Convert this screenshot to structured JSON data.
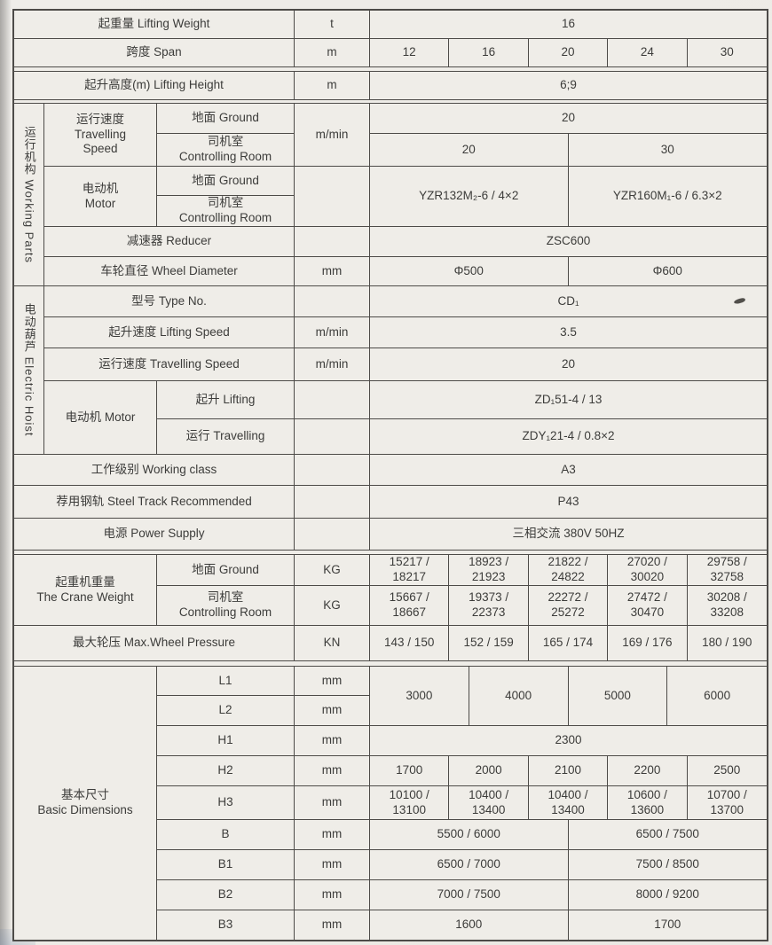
{
  "table": {
    "cells": [
      {
        "name": "lifting-weight-label",
        "text": "起重量  Lifting Weight",
        "c": 1,
        "cs": 3,
        "r": 1
      },
      {
        "name": "lifting-weight-unit",
        "text": "t",
        "c": 4,
        "r": 1
      },
      {
        "name": "lifting-weight-value",
        "text": "16",
        "c": 5,
        "cs": 20,
        "r": 1
      },
      {
        "name": "span-label",
        "text": "跨度  Span",
        "c": 1,
        "cs": 3,
        "r": 2
      },
      {
        "name": "span-unit",
        "text": "m",
        "c": 4,
        "r": 2
      },
      {
        "name": "span-value-1",
        "text": "12",
        "c": 5,
        "cs": 4,
        "r": 2
      },
      {
        "name": "span-value-2",
        "text": "16",
        "c": 9,
        "cs": 4,
        "r": 2
      },
      {
        "name": "span-value-3",
        "text": "20",
        "c": 13,
        "cs": 4,
        "r": 2
      },
      {
        "name": "span-value-4",
        "text": "24",
        "c": 17,
        "cs": 4,
        "r": 2
      },
      {
        "name": "span-value-5",
        "text": "30",
        "c": 21,
        "cs": 4,
        "r": 2
      },
      {
        "name": "scan-double-line-gap",
        "text": "",
        "c": 1,
        "cs": 24,
        "r": 3,
        "variant": "gap"
      },
      {
        "name": "lifting-height-label",
        "text": "起升高度(m)  Lifting Height",
        "c": 1,
        "cs": 3,
        "r": 4
      },
      {
        "name": "lifting-height-unit",
        "text": "m",
        "c": 4,
        "r": 4
      },
      {
        "name": "lifting-height-value",
        "text": "6;9",
        "c": 5,
        "cs": 20,
        "r": 4
      },
      {
        "name": "scan-double-line-gap",
        "text": "",
        "c": 1,
        "cs": 24,
        "r": 5,
        "variant": "gap"
      },
      {
        "name": "working-parts-section-label",
        "text": "运行机构  Working Parts",
        "c": 1,
        "r": 6,
        "rs": 6,
        "variant": "vert"
      },
      {
        "name": "travelling-speed-label",
        "text": "运行速度\nTravelling\nSpeed",
        "c": 2,
        "r": 6,
        "rs": 2
      },
      {
        "name": "travelling-speed-ground-label",
        "text": "地面 Ground",
        "c": 3,
        "r": 6
      },
      {
        "name": "travelling-speed-unit",
        "text": "m/min",
        "c": 4,
        "r": 6,
        "rs": 2
      },
      {
        "name": "travelling-speed-ground-value",
        "text": "20",
        "c": 5,
        "cs": 20,
        "r": 6
      },
      {
        "name": "travelling-speed-room-label",
        "text": "司机室\nControlling Room",
        "c": 3,
        "r": 7
      },
      {
        "name": "travelling-speed-room-value-1",
        "text": "20",
        "c": 5,
        "cs": 10,
        "r": 7
      },
      {
        "name": "travelling-speed-room-value-2",
        "text": "30",
        "c": 15,
        "cs": 10,
        "r": 7
      },
      {
        "name": "motor-label",
        "text": "电动机\nMotor",
        "c": 2,
        "r": 8,
        "rs": 2
      },
      {
        "name": "motor-ground-label",
        "text": "地面 Ground",
        "c": 3,
        "r": 8
      },
      {
        "name": "motor-unit",
        "text": "",
        "c": 4,
        "r": 8,
        "rs": 2
      },
      {
        "name": "motor-value-1",
        "text": "YZR132M₂-6 / 4×2",
        "c": 5,
        "cs": 10,
        "r": 8,
        "rs": 2
      },
      {
        "name": "motor-value-2",
        "text": "YZR160M₁-6 / 6.3×2",
        "c": 15,
        "cs": 10,
        "r": 8,
        "rs": 2
      },
      {
        "name": "motor-room-label",
        "text": "司机室\nControlling Room",
        "c": 3,
        "r": 9
      },
      {
        "name": "reducer-label",
        "text": "减速器 Reducer",
        "c": 2,
        "cs": 2,
        "r": 10
      },
      {
        "name": "reducer-unit",
        "text": "",
        "c": 4,
        "r": 10
      },
      {
        "name": "reducer-value",
        "text": "ZSC600",
        "c": 5,
        "cs": 20,
        "r": 10
      },
      {
        "name": "wheel-diameter-label",
        "text": "车轮直径 Wheel Diameter",
        "c": 2,
        "cs": 2,
        "r": 11
      },
      {
        "name": "wheel-diameter-unit",
        "text": "mm",
        "c": 4,
        "r": 11
      },
      {
        "name": "wheel-diameter-value-1",
        "text": "Φ500",
        "c": 5,
        "cs": 10,
        "r": 11
      },
      {
        "name": "wheel-diameter-value-2",
        "text": "Φ600",
        "c": 15,
        "cs": 10,
        "r": 11
      },
      {
        "name": "electric-hoist-section-label",
        "text": "电动葫芦 Electric Hoist",
        "c": 1,
        "r": 12,
        "rs": 5,
        "variant": "vert"
      },
      {
        "name": "type-no-label",
        "text": "型号 Type No.",
        "c": 2,
        "cs": 2,
        "r": 12
      },
      {
        "name": "type-no-unit",
        "text": "",
        "c": 4,
        "r": 12
      },
      {
        "name": "type-no-value",
        "text": "CD₁",
        "c": 5,
        "cs": 20,
        "r": 12
      },
      {
        "name": "lifting-speed-label",
        "text": "起升速度 Lifting Speed",
        "c": 2,
        "cs": 2,
        "r": 13
      },
      {
        "name": "lifting-speed-unit",
        "text": "m/min",
        "c": 4,
        "r": 13
      },
      {
        "name": "lifting-speed-value",
        "text": "3.5",
        "c": 5,
        "cs": 20,
        "r": 13
      },
      {
        "name": "hoist-travelling-speed-label",
        "text": "运行速度 Travelling Speed",
        "c": 2,
        "cs": 2,
        "r": 14
      },
      {
        "name": "hoist-travelling-speed-unit",
        "text": "m/min",
        "c": 4,
        "r": 14
      },
      {
        "name": "hoist-travelling-speed-value",
        "text": "20",
        "c": 5,
        "cs": 20,
        "r": 14
      },
      {
        "name": "hoist-motor-label",
        "text": "电动机 Motor",
        "c": 2,
        "r": 15,
        "rs": 2
      },
      {
        "name": "hoist-motor-lifting-label",
        "text": "起升 Lifting",
        "c": 3,
        "r": 15
      },
      {
        "name": "hoist-motor-lifting-unit",
        "text": "",
        "c": 4,
        "r": 15
      },
      {
        "name": "hoist-motor-lifting-value",
        "text": "ZD₁51-4 / 13",
        "c": 5,
        "cs": 20,
        "r": 15
      },
      {
        "name": "hoist-motor-travelling-label",
        "text": "运行 Travelling",
        "c": 3,
        "r": 16
      },
      {
        "name": "hoist-motor-travelling-unit",
        "text": "",
        "c": 4,
        "r": 16
      },
      {
        "name": "hoist-motor-travelling-value",
        "text": "ZDY₁21-4 / 0.8×2",
        "c": 5,
        "cs": 20,
        "r": 16
      },
      {
        "name": "working-class-label",
        "text": "工作级别 Working class",
        "c": 1,
        "cs": 3,
        "r": 17
      },
      {
        "name": "working-class-unit",
        "text": "",
        "c": 4,
        "r": 17
      },
      {
        "name": "working-class-value",
        "text": "A3",
        "c": 5,
        "cs": 20,
        "r": 17
      },
      {
        "name": "steel-track-label",
        "text": "荐用钢轨 Steel Track Recommended",
        "c": 1,
        "cs": 3,
        "r": 18
      },
      {
        "name": "steel-track-unit",
        "text": "",
        "c": 4,
        "r": 18
      },
      {
        "name": "steel-track-value",
        "text": "P43",
        "c": 5,
        "cs": 20,
        "r": 18
      },
      {
        "name": "power-supply-label",
        "text": "电源 Power Supply",
        "c": 1,
        "cs": 3,
        "r": 19
      },
      {
        "name": "power-supply-unit",
        "text": "",
        "c": 4,
        "r": 19
      },
      {
        "name": "power-supply-value",
        "text": "三相交流 380V  50HZ",
        "c": 5,
        "cs": 20,
        "r": 19
      },
      {
        "name": "scan-double-line-gap",
        "text": "",
        "c": 1,
        "cs": 24,
        "r": 20,
        "variant": "gap"
      },
      {
        "name": "crane-weight-label",
        "text": "起重机重量\nThe Crane Weight",
        "c": 1,
        "cs": 2,
        "r": 21,
        "rs": 2
      },
      {
        "name": "crane-weight-ground-label",
        "text": "地面 Ground",
        "c": 3,
        "r": 21
      },
      {
        "name": "crane-weight-ground-unit",
        "text": "KG",
        "c": 4,
        "r": 21
      },
      {
        "name": "crane-weight-ground-value-1",
        "text": "15217 /\n18217",
        "c": 5,
        "cs": 4,
        "r": 21
      },
      {
        "name": "crane-weight-ground-value-2",
        "text": "18923 /\n21923",
        "c": 9,
        "cs": 4,
        "r": 21
      },
      {
        "name": "crane-weight-ground-value-3",
        "text": "21822 /\n24822",
        "c": 13,
        "cs": 4,
        "r": 21
      },
      {
        "name": "crane-weight-ground-value-4",
        "text": "27020 /\n30020",
        "c": 17,
        "cs": 4,
        "r": 21
      },
      {
        "name": "crane-weight-ground-value-5",
        "text": "29758 /\n32758",
        "c": 21,
        "cs": 4,
        "r": 21
      },
      {
        "name": "crane-weight-room-label",
        "text": "司机室\nControlling Room",
        "c": 3,
        "r": 22
      },
      {
        "name": "crane-weight-room-unit",
        "text": "KG",
        "c": 4,
        "r": 22
      },
      {
        "name": "crane-weight-room-value-1",
        "text": "15667 /\n18667",
        "c": 5,
        "cs": 4,
        "r": 22
      },
      {
        "name": "crane-weight-room-value-2",
        "text": "19373 /\n22373",
        "c": 9,
        "cs": 4,
        "r": 22
      },
      {
        "name": "crane-weight-room-value-3",
        "text": "22272 /\n25272",
        "c": 13,
        "cs": 4,
        "r": 22
      },
      {
        "name": "crane-weight-room-value-4",
        "text": "27472 /\n30470",
        "c": 17,
        "cs": 4,
        "r": 22
      },
      {
        "name": "crane-weight-room-value-5",
        "text": "30208 /\n33208",
        "c": 21,
        "cs": 4,
        "r": 22
      },
      {
        "name": "max-wheel-pressure-label",
        "text": "最大轮压 Max.Wheel Pressure",
        "c": 1,
        "cs": 3,
        "r": 23
      },
      {
        "name": "max-wheel-pressure-unit",
        "text": "KN",
        "c": 4,
        "r": 23
      },
      {
        "name": "max-wheel-pressure-value-1",
        "text": "143 / 150",
        "c": 5,
        "cs": 4,
        "r": 23
      },
      {
        "name": "max-wheel-pressure-value-2",
        "text": "152 / 159",
        "c": 9,
        "cs": 4,
        "r": 23
      },
      {
        "name": "max-wheel-pressure-value-3",
        "text": "165 / 174",
        "c": 13,
        "cs": 4,
        "r": 23
      },
      {
        "name": "max-wheel-pressure-value-4",
        "text": "169 / 176",
        "c": 17,
        "cs": 4,
        "r": 23
      },
      {
        "name": "max-wheel-pressure-value-5",
        "text": "180 / 190",
        "c": 21,
        "cs": 4,
        "r": 23
      },
      {
        "name": "scan-double-line-gap",
        "text": "",
        "c": 1,
        "cs": 24,
        "r": 24,
        "variant": "gap"
      },
      {
        "name": "basic-dimensions-label",
        "text": "基本尺寸\nBasic Dimensions",
        "c": 1,
        "cs": 2,
        "r": 25,
        "rs": 9
      },
      {
        "name": "dim-l1-label",
        "text": "L1",
        "c": 3,
        "r": 25
      },
      {
        "name": "dim-l1-unit",
        "text": "mm",
        "c": 4,
        "r": 25
      },
      {
        "name": "dim-l1-l2-value-1",
        "text": "3000",
        "c": 5,
        "cs": 5,
        "r": 25,
        "rs": 2
      },
      {
        "name": "dim-l1-l2-value-2",
        "text": "4000",
        "c": 10,
        "cs": 5,
        "r": 25,
        "rs": 2
      },
      {
        "name": "dim-l1-l2-value-3",
        "text": "5000",
        "c": 15,
        "cs": 5,
        "r": 25,
        "rs": 2
      },
      {
        "name": "dim-l1-l2-value-4",
        "text": "6000",
        "c": 20,
        "cs": 5,
        "r": 25,
        "rs": 2
      },
      {
        "name": "dim-l2-label",
        "text": "L2",
        "c": 3,
        "r": 26
      },
      {
        "name": "dim-l2-unit",
        "text": "mm",
        "c": 4,
        "r": 26
      },
      {
        "name": "dim-h1-label",
        "text": "H1",
        "c": 3,
        "r": 27
      },
      {
        "name": "dim-h1-unit",
        "text": "mm",
        "c": 4,
        "r": 27
      },
      {
        "name": "dim-h1-value",
        "text": "2300",
        "c": 5,
        "cs": 20,
        "r": 27
      },
      {
        "name": "dim-h2-label",
        "text": "H2",
        "c": 3,
        "r": 28
      },
      {
        "name": "dim-h2-unit",
        "text": "mm",
        "c": 4,
        "r": 28
      },
      {
        "name": "dim-h2-value-1",
        "text": "1700",
        "c": 5,
        "cs": 4,
        "r": 28
      },
      {
        "name": "dim-h2-value-2",
        "text": "2000",
        "c": 9,
        "cs": 4,
        "r": 28
      },
      {
        "name": "dim-h2-value-3",
        "text": "2100",
        "c": 13,
        "cs": 4,
        "r": 28
      },
      {
        "name": "dim-h2-value-4",
        "text": "2200",
        "c": 17,
        "cs": 4,
        "r": 28
      },
      {
        "name": "dim-h2-value-5",
        "text": "2500",
        "c": 21,
        "cs": 4,
        "r": 28
      },
      {
        "name": "dim-h3-label",
        "text": "H3",
        "c": 3,
        "r": 29
      },
      {
        "name": "dim-h3-unit",
        "text": "mm",
        "c": 4,
        "r": 29
      },
      {
        "name": "dim-h3-value-1",
        "text": "10100 /\n13100",
        "c": 5,
        "cs": 4,
        "r": 29
      },
      {
        "name": "dim-h3-value-2",
        "text": "10400 /\n13400",
        "c": 9,
        "cs": 4,
        "r": 29
      },
      {
        "name": "dim-h3-value-3",
        "text": "10400 /\n13400",
        "c": 13,
        "cs": 4,
        "r": 29
      },
      {
        "name": "dim-h3-value-4",
        "text": "10600 /\n13600",
        "c": 17,
        "cs": 4,
        "r": 29
      },
      {
        "name": "dim-h3-value-5",
        "text": "10700 /\n13700",
        "c": 21,
        "cs": 4,
        "r": 29
      },
      {
        "name": "dim-b-label",
        "text": "B",
        "c": 3,
        "r": 30
      },
      {
        "name": "dim-b-unit",
        "text": "mm",
        "c": 4,
        "r": 30
      },
      {
        "name": "dim-b-value-1",
        "text": "5500 / 6000",
        "c": 5,
        "cs": 10,
        "r": 30
      },
      {
        "name": "dim-b-value-2",
        "text": "6500 / 7500",
        "c": 15,
        "cs": 10,
        "r": 30
      },
      {
        "name": "dim-b1-label",
        "text": "B1",
        "c": 3,
        "r": 31
      },
      {
        "name": "dim-b1-unit",
        "text": "mm",
        "c": 4,
        "r": 31
      },
      {
        "name": "dim-b1-value-1",
        "text": "6500 / 7000",
        "c": 5,
        "cs": 10,
        "r": 31
      },
      {
        "name": "dim-b1-value-2",
        "text": "7500 / 8500",
        "c": 15,
        "cs": 10,
        "r": 31
      },
      {
        "name": "dim-b2-label",
        "text": "B2",
        "c": 3,
        "r": 32
      },
      {
        "name": "dim-b2-unit",
        "text": "mm",
        "c": 4,
        "r": 32
      },
      {
        "name": "dim-b2-value-1",
        "text": "7000 / 7500",
        "c": 5,
        "cs": 10,
        "r": 32
      },
      {
        "name": "dim-b2-value-2",
        "text": "8000 / 9200",
        "c": 15,
        "cs": 10,
        "r": 32
      },
      {
        "name": "dim-b3-label",
        "text": "B3",
        "c": 3,
        "r": 33
      },
      {
        "name": "dim-b3-unit",
        "text": "mm",
        "c": 4,
        "r": 33
      },
      {
        "name": "dim-b3-value-1",
        "text": "1600",
        "c": 5,
        "cs": 10,
        "r": 33
      },
      {
        "name": "dim-b3-value-2",
        "text": "1700",
        "c": 15,
        "cs": 10,
        "r": 33
      }
    ],
    "colors": {
      "page_background": "#e7e5e0",
      "paper": "#efede8",
      "line": "#4d4b48",
      "ink": "#3c3c3a"
    }
  }
}
